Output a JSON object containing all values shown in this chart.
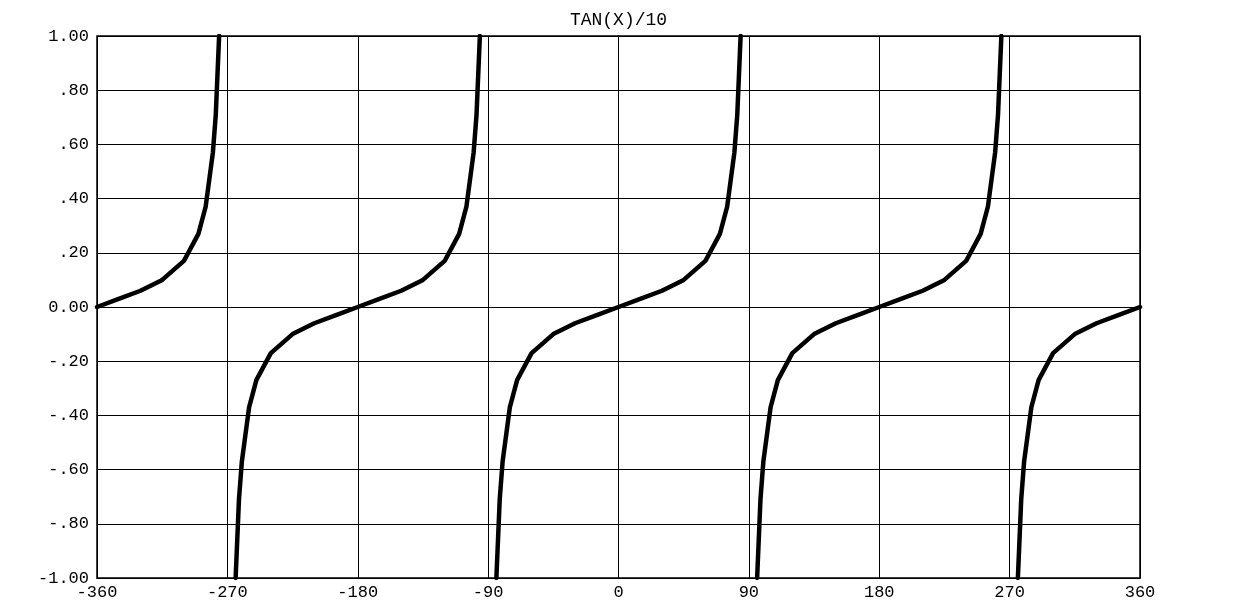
{
  "chart_data": {
    "type": "line",
    "title": "TAN(X)/10",
    "series": [
      {
        "color": "#000000",
        "x": [
          -360,
          -345,
          -330,
          -315,
          -300,
          -290,
          -285,
          -280,
          -278,
          -275.7,
          -270,
          -264.3,
          -262,
          -260,
          -255,
          -250,
          -240,
          -225,
          -210,
          -195,
          -180,
          -165,
          -150,
          -135,
          -120,
          -110,
          -105,
          -100,
          -98,
          -95.7,
          -90,
          -84.3,
          -82,
          -80,
          -75,
          -70,
          -60,
          -45,
          -30,
          -15,
          0,
          15,
          30,
          45,
          60,
          70,
          75,
          80,
          82,
          84.3,
          90,
          95.7,
          98,
          100,
          105,
          110,
          120,
          135,
          150,
          165,
          180,
          195,
          210,
          225,
          240,
          250,
          255,
          260,
          262,
          264.3,
          270,
          275.7,
          278,
          280,
          285,
          290,
          300,
          315,
          330,
          345,
          360
        ],
        "values": [
          0,
          0.03,
          0.06,
          0.1,
          0.17,
          0.27,
          0.37,
          0.57,
          0.71,
          1,
          null,
          -1,
          -0.71,
          -0.57,
          -0.37,
          -0.27,
          -0.17,
          -0.1,
          -0.06,
          -0.03,
          0,
          0.03,
          0.06,
          0.1,
          0.17,
          0.27,
          0.37,
          0.57,
          0.71,
          1,
          null,
          -1,
          -0.71,
          -0.57,
          -0.37,
          -0.27,
          -0.17,
          -0.1,
          -0.06,
          -0.03,
          0,
          0.03,
          0.06,
          0.1,
          0.17,
          0.27,
          0.37,
          0.57,
          0.71,
          1,
          null,
          -1,
          -0.71,
          -0.57,
          -0.37,
          -0.27,
          -0.17,
          -0.1,
          -0.06,
          -0.03,
          0,
          0.03,
          0.06,
          0.1,
          0.17,
          0.27,
          0.37,
          0.57,
          0.71,
          1,
          null,
          -1,
          -0.71,
          -0.57,
          -0.37,
          -0.27,
          -0.17,
          -0.1,
          -0.06,
          -0.03,
          0
        ]
      }
    ],
    "xlim": [
      -360,
      360
    ],
    "xticks": [
      -360,
      -270,
      -180,
      -90,
      0,
      90,
      180,
      270,
      360
    ],
    "ylim": [
      -1,
      1
    ],
    "yticks": [
      {
        "value": -1,
        "label": "-1.00"
      },
      {
        "value": -0.8,
        "label": "-.80"
      },
      {
        "value": -0.6,
        "label": "-.60"
      },
      {
        "value": -0.4,
        "label": "-.40"
      },
      {
        "value": -0.2,
        "label": "-.20"
      },
      {
        "value": 0,
        "label": "0.00"
      },
      {
        "value": 0.2,
        "label": ".20"
      },
      {
        "value": 0.4,
        "label": ".40"
      },
      {
        "value": 0.6,
        "label": ".60"
      },
      {
        "value": 0.8,
        "label": ".80"
      },
      {
        "value": 1,
        "label": "1.00"
      }
    ],
    "grid": true,
    "marker": "none",
    "line_style": "solid"
  }
}
